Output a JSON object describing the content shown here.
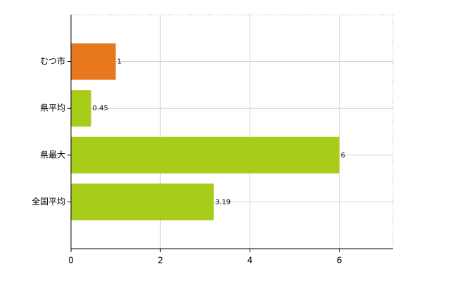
{
  "chart_data": {
    "type": "hbar",
    "categories": [
      "むつ市",
      "県平均",
      "県最大",
      "全国平均"
    ],
    "values": [
      1,
      0.45,
      6,
      3.19
    ],
    "colors": [
      "#e8781e",
      "#a8cc1a",
      "#a8cc1a",
      "#a8cc1a"
    ],
    "xlim": [
      0,
      7.2
    ],
    "xticks": [
      0,
      2,
      4,
      6
    ],
    "grid": true
  }
}
